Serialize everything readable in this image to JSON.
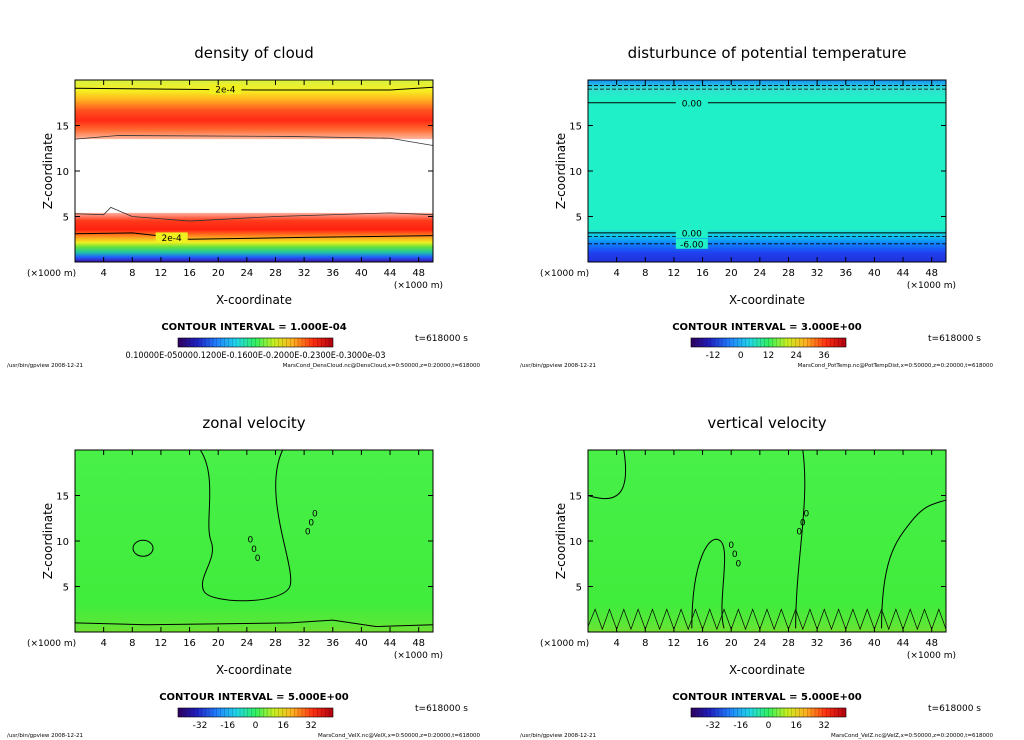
{
  "chart_data": [
    {
      "id": "cloud",
      "type": "heatmap",
      "title": "density of cloud",
      "xlabel": "X-coordinate",
      "ylabel": "Z-coordinate",
      "xunit": "(×1000 m)",
      "xunit_right": "(×1000 m)",
      "xlim": [
        0,
        50
      ],
      "ylim": [
        0,
        20
      ],
      "xticks": [
        "4",
        "8",
        "12",
        "16",
        "20",
        "24",
        "28",
        "32",
        "36",
        "40",
        "44",
        "48"
      ],
      "yticks": [
        "5",
        "10",
        "15"
      ],
      "contour_labels": [
        "2e-4",
        "2e-4"
      ],
      "contour_interval": "CONTOUR INTERVAL = 1.000E-04",
      "time": "t=618000 s",
      "colorbar_labels": [
        "0.10000E-05",
        "0.1000E-03",
        "0.1200E-03",
        "0.1600E-03",
        "0.2000E-03",
        "0.2300E-03",
        "0.3000e-03"
      ],
      "colorbar_text": "0.10000E-050000.1200E-0.1600E-0.2000E-0.2300E-0.3000e-03",
      "footer_left": "/usr/bin/gpview  2008-12-21",
      "footer_right": "MarsCond_DensCloud.nc@DensCloud,x=0:50000,z=0:20000,t=618000"
    },
    {
      "id": "pt",
      "type": "heatmap",
      "title": "disturbunce of potential temperature",
      "xlabel": "X-coordinate",
      "ylabel": "Z-coordinate",
      "xunit": "(×1000 m)",
      "xunit_right": "(×1000 m)",
      "xlim": [
        0,
        50
      ],
      "ylim": [
        0,
        20
      ],
      "xticks": [
        "4",
        "8",
        "12",
        "16",
        "20",
        "24",
        "28",
        "32",
        "36",
        "40",
        "44",
        "48"
      ],
      "yticks": [
        "5",
        "10",
        "15"
      ],
      "contour_labels": [
        "0.00",
        "0.00",
        "-6.00"
      ],
      "contour_interval": "CONTOUR INTERVAL = 3.000E+00",
      "time": "t=618000 s",
      "colorbar_labels": [
        "-12",
        "0",
        "12",
        "24",
        "36"
      ],
      "footer_left": "/usr/bin/gpview  2008-12-21",
      "footer_right": "MarsCond_PotTemp.nc@PotTempDist,x=0:50000,z=0:20000,t=618000"
    },
    {
      "id": "velx",
      "type": "heatmap",
      "title": "zonal velocity",
      "xlabel": "X-coordinate",
      "ylabel": "Z-coordinate",
      "xunit": "(×1000 m)",
      "xunit_right": "(×1000 m)",
      "xlim": [
        0,
        50
      ],
      "ylim": [
        0,
        20
      ],
      "xticks": [
        "4",
        "8",
        "12",
        "16",
        "20",
        "24",
        "28",
        "32",
        "36",
        "40",
        "44",
        "48"
      ],
      "yticks": [
        "5",
        "10",
        "15"
      ],
      "contour_labels": [
        "0",
        "0",
        "0",
        "0",
        "0",
        "0"
      ],
      "contour_interval": "CONTOUR INTERVAL = 5.000E+00",
      "time": "t=618000 s",
      "colorbar_labels": [
        "-32",
        "-16",
        "0",
        "16",
        "32"
      ],
      "footer_left": "/usr/bin/gpview  2008-12-21",
      "footer_right": "MarsCond_VelX.nc@VelX,x=0:50000,z=0:20000,t=618000"
    },
    {
      "id": "velz",
      "type": "heatmap",
      "title": "vertical velocity",
      "xlabel": "X-coordinate",
      "ylabel": "Z-coordinate",
      "xunit": "(×1000 m)",
      "xunit_right": "(×1000 m)",
      "xlim": [
        0,
        50
      ],
      "ylim": [
        0,
        20
      ],
      "xticks": [
        "4",
        "8",
        "12",
        "16",
        "20",
        "24",
        "28",
        "32",
        "36",
        "40",
        "44",
        "48"
      ],
      "yticks": [
        "5",
        "10",
        "15"
      ],
      "contour_labels": [
        "0",
        "0",
        "0",
        "0",
        "0",
        "0"
      ],
      "contour_interval": "CONTOUR INTERVAL = 5.000E+00",
      "time": "t=618000 s",
      "colorbar_labels": [
        "-32",
        "-16",
        "0",
        "16",
        "32"
      ],
      "footer_left": "/usr/bin/gpview  2008-12-21",
      "footer_right": "MarsCond_VelZ.nc@VelZ,x=0:50000,z=0:20000,t=618000"
    }
  ]
}
